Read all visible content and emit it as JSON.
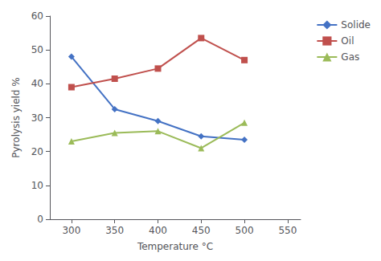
{
  "chart_data": {
    "type": "line",
    "xlabel": "Temperature °C",
    "ylabel": "Pyrolysis yield %",
    "x": [
      300,
      350,
      400,
      450,
      500
    ],
    "series": [
      {
        "name": "Solide",
        "color": "#4472C4",
        "marker": "diamond",
        "values": [
          48,
          32.5,
          29,
          24.5,
          23.5
        ]
      },
      {
        "name": "Oil",
        "color": "#C0504D",
        "marker": "rect",
        "values": [
          39,
          41.5,
          44.5,
          53.5,
          47
        ]
      },
      {
        "name": "Gas",
        "color": "#9BBB59",
        "marker": "triangle",
        "values": [
          23,
          25.5,
          26,
          21,
          28.5
        ]
      }
    ],
    "xlim": [
      275,
      565
    ],
    "xticks": [
      300,
      350,
      400,
      450,
      500,
      550
    ],
    "ylim": [
      0,
      60
    ],
    "yticks": [
      0,
      10,
      20,
      30,
      40,
      50,
      60
    ],
    "grid": false,
    "legend": "upper right"
  }
}
